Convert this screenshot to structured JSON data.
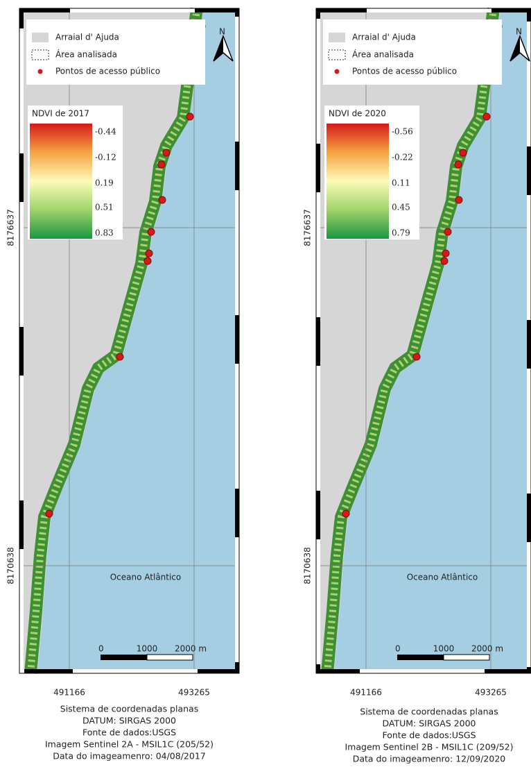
{
  "panels": [
    {
      "legend": [
        "Arraial d' Ajuda",
        "Área analisada",
        "Pontos de acesso público"
      ],
      "ndvi_title": "NDVI de 2017",
      "ndvi_labels": [
        "-0.44",
        "-0.12",
        "0.19",
        "0.51",
        "0.83"
      ],
      "north": "N",
      "ocean": "Oceano Atlântico",
      "scale": [
        "0",
        "1000",
        "2000 m"
      ],
      "x_labels": [
        "491166",
        "493265"
      ],
      "y_labels": [
        "8176637",
        "8170638"
      ],
      "caption": [
        "Sistema de coordenadas planas",
        "DATUM: SIRGAS 2000",
        "Fonte de dados:USGS",
        "Imagem Sentinel 2A - MSIL1C (205/52)",
        "Data do imageamenro: 04/08/2017"
      ]
    },
    {
      "legend": [
        "Arraial d' Ajuda",
        "Área analisada",
        "Pontos de acesso público"
      ],
      "ndvi_title": "NDVI de 2020",
      "ndvi_labels": [
        "-0.56",
        "-0.22",
        "0.11",
        "0.45",
        "0.79"
      ],
      "north": "N",
      "ocean": "Oceano Atlântico",
      "scale": [
        "0",
        "1000",
        "2000 m"
      ],
      "x_labels": [
        "491166",
        "493265"
      ],
      "y_labels": [
        "8176637",
        "8170638"
      ],
      "caption": [
        "Sistema de coordenadas planas",
        "DATUM: SIRGAS 2000",
        "Fonte de dados:USGS",
        "Imagem Sentinel 2B - MSIL1C (209/52)",
        "Data do imageamenro: 12/09/2020"
      ]
    }
  ]
}
